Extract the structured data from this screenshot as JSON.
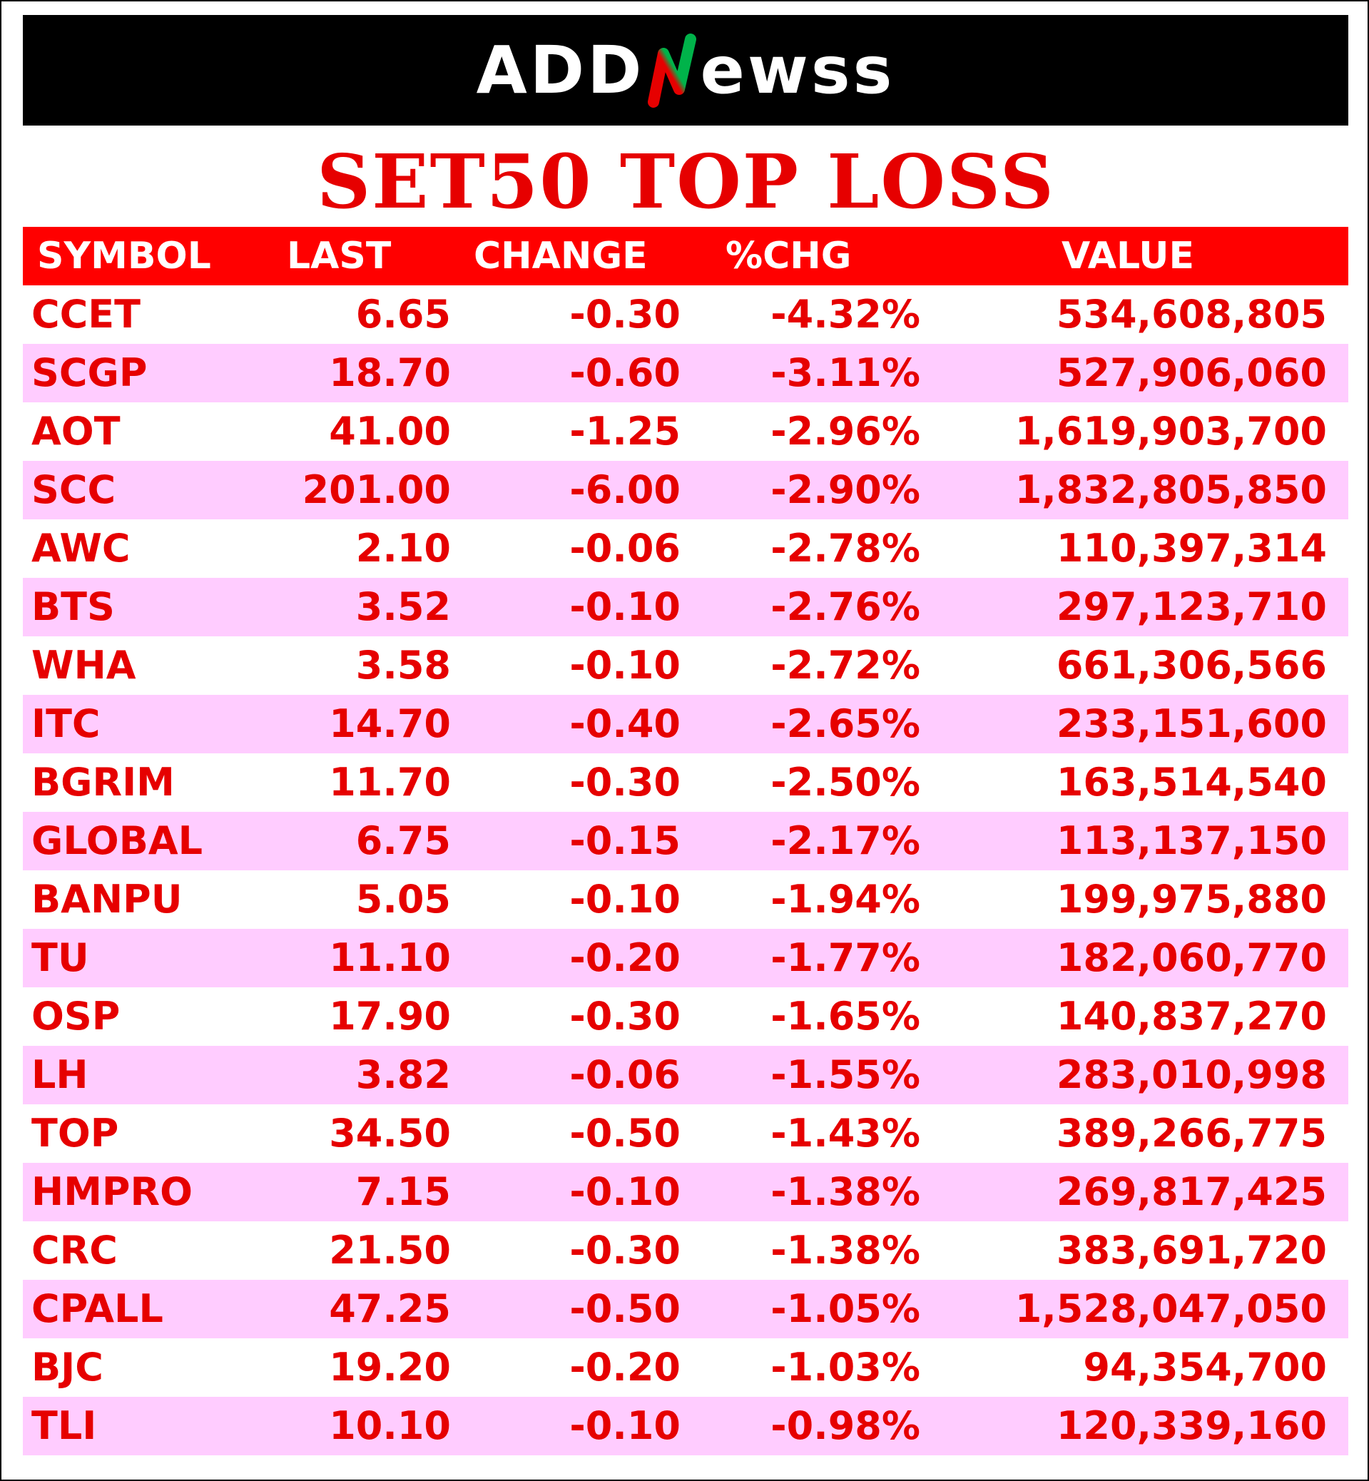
{
  "brand": {
    "logo_left": "ADD",
    "logo_right": "ewss",
    "logo_accent_colors": [
      "#00b34a",
      "#e60000"
    ]
  },
  "title": "SET50 TOP LOSS",
  "colors": {
    "title": "#e60000",
    "header_bg": "#ff0000",
    "header_text": "#ffffff",
    "row_text": "#e60000",
    "alt_row_bg": "#ffccff",
    "banner_bg": "#000000"
  },
  "table": {
    "columns": [
      "SYMBOL",
      "LAST",
      "CHANGE",
      "%CHG",
      "VALUE"
    ],
    "rows": [
      {
        "symbol": "CCET",
        "last": "6.65",
        "change": "-0.30",
        "pct": "-4.32%",
        "value": "534,608,805"
      },
      {
        "symbol": "SCGP",
        "last": "18.70",
        "change": "-0.60",
        "pct": "-3.11%",
        "value": "527,906,060"
      },
      {
        "symbol": "AOT",
        "last": "41.00",
        "change": "-1.25",
        "pct": "-2.96%",
        "value": "1,619,903,700"
      },
      {
        "symbol": "SCC",
        "last": "201.00",
        "change": "-6.00",
        "pct": "-2.90%",
        "value": "1,832,805,850"
      },
      {
        "symbol": "AWC",
        "last": "2.10",
        "change": "-0.06",
        "pct": "-2.78%",
        "value": "110,397,314"
      },
      {
        "symbol": "BTS",
        "last": "3.52",
        "change": "-0.10",
        "pct": "-2.76%",
        "value": "297,123,710"
      },
      {
        "symbol": "WHA",
        "last": "3.58",
        "change": "-0.10",
        "pct": "-2.72%",
        "value": "661,306,566"
      },
      {
        "symbol": "ITC",
        "last": "14.70",
        "change": "-0.40",
        "pct": "-2.65%",
        "value": "233,151,600"
      },
      {
        "symbol": "BGRIM",
        "last": "11.70",
        "change": "-0.30",
        "pct": "-2.50%",
        "value": "163,514,540"
      },
      {
        "symbol": "GLOBAL",
        "last": "6.75",
        "change": "-0.15",
        "pct": "-2.17%",
        "value": "113,137,150"
      },
      {
        "symbol": "BANPU",
        "last": "5.05",
        "change": "-0.10",
        "pct": "-1.94%",
        "value": "199,975,880"
      },
      {
        "symbol": "TU",
        "last": "11.10",
        "change": "-0.20",
        "pct": "-1.77%",
        "value": "182,060,770"
      },
      {
        "symbol": "OSP",
        "last": "17.90",
        "change": "-0.30",
        "pct": "-1.65%",
        "value": "140,837,270"
      },
      {
        "symbol": "LH",
        "last": "3.82",
        "change": "-0.06",
        "pct": "-1.55%",
        "value": "283,010,998"
      },
      {
        "symbol": "TOP",
        "last": "34.50",
        "change": "-0.50",
        "pct": "-1.43%",
        "value": "389,266,775"
      },
      {
        "symbol": "HMPRO",
        "last": "7.15",
        "change": "-0.10",
        "pct": "-1.38%",
        "value": "269,817,425"
      },
      {
        "symbol": "CRC",
        "last": "21.50",
        "change": "-0.30",
        "pct": "-1.38%",
        "value": "383,691,720"
      },
      {
        "symbol": "CPALL",
        "last": "47.25",
        "change": "-0.50",
        "pct": "-1.05%",
        "value": "1,528,047,050"
      },
      {
        "symbol": "BJC",
        "last": "19.20",
        "change": "-0.20",
        "pct": "-1.03%",
        "value": "94,354,700"
      },
      {
        "symbol": "TLI",
        "last": "10.10",
        "change": "-0.10",
        "pct": "-0.98%",
        "value": "120,339,160"
      }
    ]
  }
}
